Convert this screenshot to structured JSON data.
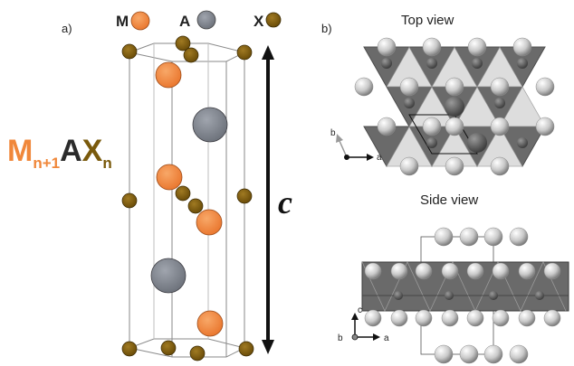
{
  "panel_a": {
    "label": "a)",
    "legend": [
      {
        "symbol": "M",
        "color": "#f0873a",
        "text_color": "#f0873a"
      },
      {
        "symbol": "A",
        "color": "#7a7f8a",
        "text_color": "#2b2b2b"
      },
      {
        "symbol": "X",
        "color": "#7a5a0c",
        "text_color": "#7a5a0c"
      }
    ],
    "formula": {
      "m": "M",
      "m_sub": "n+1",
      "a": "A",
      "x": "X",
      "x_sub": "n"
    },
    "axis_label": "c"
  },
  "panel_b": {
    "label": "b)",
    "top_view_title": "Top view",
    "side_view_title": "Side view",
    "top_axes": {
      "b": "b",
      "a": "a"
    },
    "side_axes": {
      "c": "c",
      "b": "b",
      "a": "a"
    }
  }
}
